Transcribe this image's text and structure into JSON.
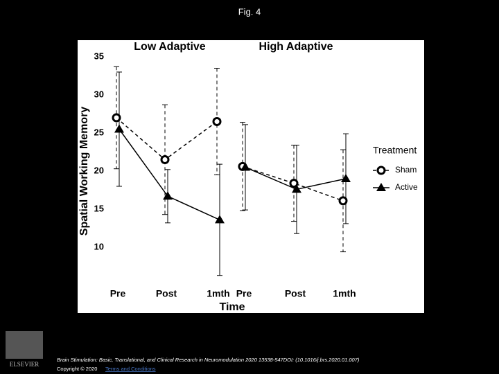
{
  "slide_title": "Fig. 4",
  "chart_data": {
    "type": "line",
    "y_label": "Spatial Working Memory",
    "x_label": "Time",
    "ylim": [
      6,
      37
    ],
    "yticks": [
      10,
      15,
      20,
      25,
      30,
      35
    ],
    "panels": [
      {
        "title": "Low Adaptive",
        "categories": [
          "Pre",
          "Post",
          "1mth"
        ]
      },
      {
        "title": "High Adaptive",
        "categories": [
          "Pre",
          "Post",
          "1mth"
        ]
      }
    ],
    "legend_title": "Treatment",
    "series": [
      {
        "name": "Sham",
        "color": "#000000",
        "dashed": true,
        "marker": "circle",
        "values": [
          [
            27,
            21.5,
            26.5
          ],
          [
            20.6,
            18.4,
            16.1
          ]
        ],
        "errors": [
          [
            6.7,
            7.2,
            7
          ],
          [
            5.8,
            5,
            6.7
          ]
        ]
      },
      {
        "name": "Active",
        "color": "#000000",
        "dashed": false,
        "marker": "triangle",
        "values": [
          [
            25.5,
            16.7,
            13.6
          ],
          [
            20.5,
            17.6,
            19
          ]
        ],
        "errors": [
          [
            7.5,
            3.5,
            7.3
          ],
          [
            5.6,
            5.8,
            5.9
          ]
        ]
      }
    ]
  },
  "footer": {
    "citation": "Brain Stimulation: Basic, Translational, and Clinical Research in Neuromodulation 2020 13538-547DOI: (10.1016/j.brs.2020.01.007)",
    "copyright": "Copyright © 2020",
    "link": "Terms and Conditions",
    "logo_text": "ELSEVIER"
  }
}
